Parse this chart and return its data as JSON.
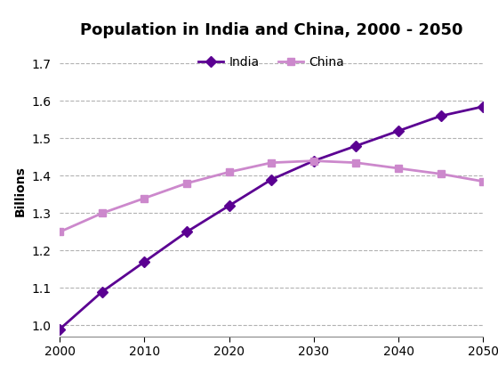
{
  "title": "Population in India and China, 2000 - 2050",
  "ylabel": "Billions",
  "india_x": [
    2000,
    2005,
    2010,
    2015,
    2020,
    2025,
    2030,
    2035,
    2040,
    2045,
    2050
  ],
  "india_y": [
    0.99,
    1.09,
    1.17,
    1.25,
    1.32,
    1.39,
    1.44,
    1.48,
    1.52,
    1.56,
    1.585
  ],
  "china_x": [
    2000,
    2005,
    2010,
    2015,
    2020,
    2025,
    2030,
    2035,
    2040,
    2045,
    2050
  ],
  "china_y": [
    1.25,
    1.3,
    1.34,
    1.38,
    1.41,
    1.435,
    1.44,
    1.435,
    1.42,
    1.405,
    1.385
  ],
  "india_color": "#5B0092",
  "china_color": "#CC88CC",
  "india_marker": "D",
  "china_marker": "s",
  "india_label": "India",
  "china_label": "China",
  "xlim": [
    2000,
    2050
  ],
  "ylim": [
    0.97,
    1.75
  ],
  "yticks": [
    1.0,
    1.1,
    1.2,
    1.3,
    1.4,
    1.5,
    1.6,
    1.7
  ],
  "xticks": [
    2000,
    2010,
    2020,
    2030,
    2040,
    2050
  ],
  "grid_color": "#aaaaaa",
  "background_color": "#ffffff",
  "title_fontsize": 13,
  "label_fontsize": 10,
  "tick_fontsize": 10,
  "legend_fontsize": 10,
  "linewidth": 2.0,
  "markersize": 6
}
